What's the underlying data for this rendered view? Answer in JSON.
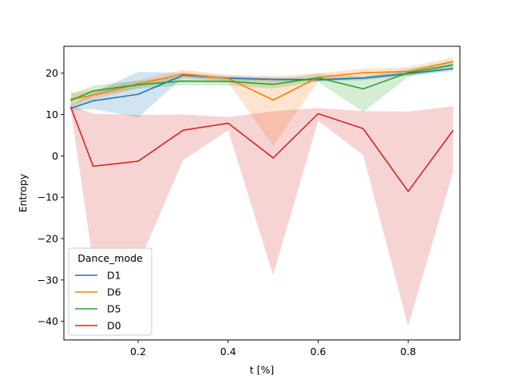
{
  "chart_data": {
    "type": "line",
    "xlabel": "t [%]",
    "ylabel": "Entropy",
    "xlim": [
      0.035,
      0.915
    ],
    "ylim": [
      -44.5,
      26.5
    ],
    "xticks": [
      0.2,
      0.4,
      0.6,
      0.8
    ],
    "xtick_labels": [
      "0.2",
      "0.4",
      "0.6",
      "0.8"
    ],
    "yticks": [
      20,
      10,
      0,
      -10,
      -20,
      -30,
      -40
    ],
    "ytick_labels": [
      "20",
      "10",
      "0",
      "−10",
      "−20",
      "−30",
      "−40"
    ],
    "grid": false,
    "x": [
      0.05,
      0.1,
      0.2,
      0.3,
      0.4,
      0.5,
      0.6,
      0.7,
      0.8,
      0.9
    ],
    "legend": {
      "title": "Dance_mode",
      "placement": "lower-left"
    },
    "series": [
      {
        "name": "D1",
        "color": "#1f77b4",
        "values": [
          11.5,
          13.3,
          14.9,
          19.5,
          18.8,
          18.5,
          18.4,
          18.8,
          19.9,
          21.1
        ],
        "lower": [
          11.0,
          11.3,
          9.3,
          18.9,
          18.2,
          18.0,
          18.0,
          18.3,
          19.4,
          20.5
        ],
        "upper": [
          12.0,
          15.3,
          20.3,
          20.1,
          19.4,
          19.0,
          18.8,
          19.3,
          20.4,
          21.7
        ]
      },
      {
        "name": "D6",
        "color": "#ff7f0e",
        "values": [
          13.7,
          14.7,
          17.4,
          19.8,
          18.7,
          13.5,
          19.0,
          20.1,
          20.4,
          22.8
        ],
        "lower": [
          12.0,
          13.5,
          16.5,
          18.8,
          17.8,
          2.3,
          18.0,
          19.1,
          19.3,
          21.8
        ],
        "upper": [
          15.4,
          15.9,
          18.3,
          20.8,
          19.6,
          19.3,
          20.0,
          21.1,
          21.5,
          23.8
        ]
      },
      {
        "name": "D5",
        "color": "#2ca02c",
        "values": [
          13.4,
          15.7,
          17.2,
          18.1,
          18.0,
          17.3,
          18.9,
          16.2,
          20.1,
          22.0
        ],
        "lower": [
          12.0,
          14.4,
          16.2,
          17.1,
          17.0,
          16.3,
          17.9,
          10.6,
          19.1,
          21.0
        ],
        "upper": [
          14.8,
          17.0,
          18.2,
          19.1,
          19.0,
          18.3,
          19.9,
          19.1,
          21.1,
          23.0
        ]
      },
      {
        "name": "D0",
        "color": "#d62728",
        "values": [
          11.9,
          -2.5,
          -1.3,
          6.2,
          7.9,
          -0.5,
          10.2,
          6.6,
          -8.6,
          6.2
        ],
        "lower": [
          11.5,
          -26.0,
          -26.3,
          -1.0,
          6.2,
          -28.9,
          8.5,
          0.2,
          -41.2,
          -3.8
        ],
        "upper": [
          12.3,
          10.2,
          9.9,
          10.0,
          9.4,
          10.8,
          11.6,
          10.8,
          10.7,
          12.0
        ]
      }
    ]
  }
}
